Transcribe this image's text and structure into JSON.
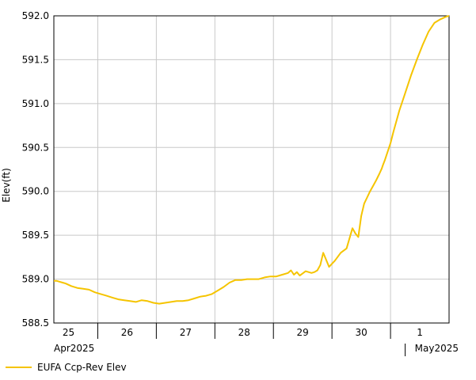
{
  "chart_data": {
    "type": "line",
    "ylabel": "Elev(ft)",
    "ylim": [
      588.5,
      592.0
    ],
    "yticks": [
      588.5,
      589.0,
      589.5,
      590.0,
      590.5,
      591.0,
      591.5,
      592.0
    ],
    "ytick_labels": [
      "588.5",
      "589.0",
      "589.5",
      "590.0",
      "590.5",
      "591.0",
      "591.5",
      "592.0"
    ],
    "xlim": [
      0,
      6.75
    ],
    "xticks": [
      0.25,
      1.25,
      2.25,
      3.25,
      4.25,
      5.25,
      6.25
    ],
    "xtick_labels": [
      "25",
      "26",
      "27",
      "28",
      "29",
      "30",
      "1"
    ],
    "x_unit": "days since 2025-04-25 00:00",
    "month_labels": [
      {
        "x": 0.0,
        "text": "Apr2025"
      },
      {
        "x": 6.0,
        "text": "May2025"
      }
    ],
    "grid": true,
    "legend_position": "bottom-left",
    "series": [
      {
        "name": "EUFA Ccp-Rev Elev",
        "color": "#f5c400",
        "x": [
          0.0,
          0.05,
          0.1,
          0.15,
          0.2,
          0.3,
          0.4,
          0.5,
          0.6,
          0.7,
          0.8,
          0.9,
          1.0,
          1.1,
          1.2,
          1.3,
          1.4,
          1.5,
          1.6,
          1.7,
          1.8,
          1.9,
          2.0,
          2.1,
          2.2,
          2.3,
          2.4,
          2.5,
          2.6,
          2.7,
          2.8,
          2.9,
          3.0,
          3.1,
          3.2,
          3.3,
          3.4,
          3.5,
          3.6,
          3.7,
          3.8,
          3.9,
          4.0,
          4.05,
          4.1,
          4.15,
          4.2,
          4.3,
          4.4,
          4.45,
          4.5,
          4.55,
          4.6,
          4.7,
          4.8,
          4.9,
          5.0,
          5.1,
          5.15,
          5.2,
          5.25,
          5.3,
          5.35,
          5.4,
          5.45,
          5.5,
          5.53,
          5.56,
          5.6,
          5.62,
          5.65,
          5.7,
          5.75,
          5.8,
          5.85,
          5.9,
          6.0,
          6.1,
          6.2,
          6.3,
          6.4,
          6.5,
          6.6,
          6.7,
          6.75
        ],
        "y": [
          588.98,
          588.98,
          588.97,
          588.96,
          588.95,
          588.92,
          588.9,
          588.89,
          588.88,
          588.85,
          588.83,
          588.81,
          588.79,
          588.77,
          588.76,
          588.75,
          588.74,
          588.76,
          588.75,
          588.73,
          588.72,
          588.73,
          588.74,
          588.75,
          588.75,
          588.76,
          588.78,
          588.8,
          588.81,
          588.83,
          588.87,
          588.91,
          588.96,
          588.99,
          588.99,
          589.0,
          589.0,
          589.0,
          589.02,
          589.03,
          589.03,
          589.05,
          589.07,
          589.1,
          589.05,
          589.08,
          589.04,
          589.09,
          589.07,
          589.08,
          589.1,
          589.16,
          589.3,
          589.14,
          589.21,
          589.3,
          589.35,
          589.58,
          589.52,
          589.48,
          589.72,
          589.86,
          589.93,
          590.0,
          590.06,
          590.12,
          590.16,
          590.2,
          590.26,
          590.3,
          590.35,
          590.45,
          590.55,
          590.68,
          590.8,
          590.92,
          591.12,
          591.32,
          591.5,
          591.67,
          591.82,
          591.92,
          591.96,
          591.99,
          592.0
        ]
      }
    ]
  }
}
